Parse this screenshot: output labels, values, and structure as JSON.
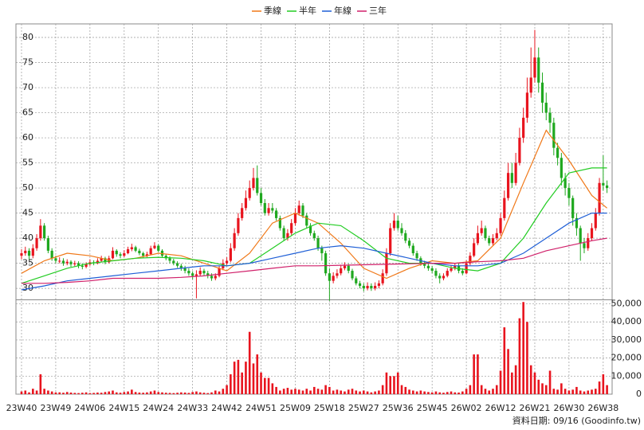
{
  "chart_data": {
    "type": "candlestick",
    "categories": [
      "23W40",
      null,
      null,
      null,
      null,
      null,
      null,
      null,
      null,
      "23W49",
      null,
      null,
      null,
      null,
      null,
      null,
      null,
      null,
      "24W06",
      null,
      null,
      null,
      null,
      null,
      null,
      null,
      null,
      "24W15",
      null,
      null,
      null,
      null,
      null,
      null,
      null,
      null,
      "24W24",
      null,
      null,
      null,
      null,
      null,
      null,
      null,
      null,
      "24W33",
      null,
      null,
      null,
      null,
      null,
      null,
      null,
      null,
      "24W42",
      null,
      null,
      null,
      null,
      null,
      null,
      null,
      null,
      "24W51",
      null,
      null,
      null,
      null,
      null,
      null,
      null,
      null,
      "25W09",
      null,
      null,
      null,
      null,
      null,
      null,
      null,
      null,
      "25W18",
      null,
      null,
      null,
      null,
      null,
      null,
      null,
      null,
      "25W27",
      null,
      null,
      null,
      null,
      null,
      null,
      null,
      null,
      "25W36",
      null,
      null,
      null,
      null,
      null,
      null,
      null,
      null,
      "25W45",
      null,
      null,
      null,
      null,
      null,
      null,
      null,
      null,
      "26W02",
      null,
      null,
      null,
      null,
      null,
      null,
      null,
      null,
      "26W12",
      null,
      null,
      null,
      null,
      null,
      null,
      null,
      null,
      "26W21",
      null,
      null,
      null,
      null,
      null,
      null,
      null,
      null,
      "26W30",
      null,
      null,
      null,
      null,
      null,
      null,
      null,
      null,
      "26W38"
    ],
    "ohlc": [
      [
        36.5,
        37.8,
        35.8,
        37
      ],
      [
        37,
        38.3,
        36.5,
        37.5
      ],
      [
        37.5,
        38,
        35.8,
        36.5
      ],
      [
        36.5,
        38.8,
        36,
        38
      ],
      [
        38,
        40.8,
        37.5,
        40
      ],
      [
        40,
        43.8,
        39.5,
        42.5
      ],
      [
        42.5,
        43,
        39.5,
        40
      ],
      [
        40,
        40.5,
        37,
        37.5
      ],
      [
        37.5,
        38,
        35.5,
        36
      ],
      [
        36,
        36.5,
        35,
        35.5
      ],
      [
        35.5,
        36.2,
        35,
        35.5
      ],
      [
        35.5,
        36,
        34.5,
        35
      ],
      [
        35,
        35.8,
        34.6,
        35.3
      ],
      [
        35.3,
        35.6,
        34.3,
        34.8
      ],
      [
        34.8,
        35.5,
        34.4,
        35
      ],
      [
        35,
        35.4,
        34,
        34.5
      ],
      [
        34.5,
        35,
        33.8,
        34.3
      ],
      [
        34.3,
        35.2,
        34,
        34.8
      ],
      [
        34.8,
        35.8,
        34.5,
        35.2
      ],
      [
        35.2,
        35.6,
        34.6,
        35
      ],
      [
        35,
        36,
        34.8,
        35.5
      ],
      [
        35.5,
        36.5,
        35.2,
        36
      ],
      [
        36,
        36.3,
        34.8,
        35.2
      ],
      [
        35.2,
        36.5,
        35,
        36
      ],
      [
        36,
        38.2,
        35.8,
        37.5
      ],
      [
        37.5,
        37.8,
        36.3,
        36.8
      ],
      [
        36.8,
        37.2,
        36,
        36.5
      ],
      [
        36.5,
        37.6,
        36.2,
        37
      ],
      [
        37,
        38.3,
        36.8,
        37.8
      ],
      [
        37.8,
        38.9,
        37.4,
        38.2
      ],
      [
        38.2,
        38.5,
        37.2,
        37.5
      ],
      [
        37.5,
        37.9,
        36.6,
        37
      ],
      [
        37,
        37.3,
        36,
        36.5
      ],
      [
        36.5,
        37.3,
        36.2,
        36.8
      ],
      [
        36.8,
        38.5,
        36.6,
        38
      ],
      [
        38,
        39.2,
        37.8,
        38.5
      ],
      [
        38.5,
        38.8,
        37.2,
        37.5
      ],
      [
        37.5,
        37.8,
        36.2,
        36.5
      ],
      [
        36.5,
        36.9,
        35.6,
        36
      ],
      [
        36,
        36.4,
        35,
        35.5
      ],
      [
        35.5,
        35.9,
        34.6,
        35
      ],
      [
        35,
        35.4,
        34.1,
        34.5
      ],
      [
        34.5,
        34.9,
        33.5,
        34
      ],
      [
        34,
        34.5,
        33,
        33.5
      ],
      [
        33.5,
        34,
        32.5,
        33
      ],
      [
        33,
        33.4,
        31.8,
        32.5
      ],
      [
        32.5,
        33.6,
        28,
        32.8
      ],
      [
        32.8,
        34.2,
        32.4,
        33.5
      ],
      [
        33.5,
        33.9,
        32.6,
        33
      ],
      [
        33,
        33.5,
        32,
        32.5
      ],
      [
        32.5,
        33,
        31.5,
        32
      ],
      [
        32,
        33,
        31.6,
        32.5
      ],
      [
        32.5,
        34.5,
        32.2,
        34
      ],
      [
        34,
        35.8,
        33.6,
        35
      ],
      [
        35,
        36.2,
        34.6,
        35.5
      ],
      [
        35.5,
        39,
        35.2,
        38
      ],
      [
        38,
        42,
        37.5,
        41
      ],
      [
        41,
        45,
        40.5,
        44
      ],
      [
        44,
        47,
        43.5,
        46
      ],
      [
        46,
        49.5,
        45.5,
        48
      ],
      [
        48,
        51.5,
        47.5,
        50
      ],
      [
        50,
        54,
        49.5,
        52
      ],
      [
        52,
        54.5,
        48.5,
        49
      ],
      [
        49,
        50,
        46.5,
        47
      ],
      [
        47,
        47.8,
        44.5,
        45
      ],
      [
        45,
        47,
        44.5,
        46
      ],
      [
        46,
        47,
        45,
        45.5
      ],
      [
        45.5,
        46,
        43.5,
        44
      ],
      [
        44,
        44.5,
        41.5,
        42
      ],
      [
        42,
        42.5,
        39.5,
        40
      ],
      [
        40,
        41.8,
        39.5,
        41
      ],
      [
        41,
        43.8,
        40.6,
        43
      ],
      [
        43,
        46,
        42.5,
        45
      ],
      [
        45,
        47.5,
        44.5,
        46.5
      ],
      [
        46.5,
        47,
        44,
        44.5
      ],
      [
        44.5,
        45,
        42,
        42.5
      ],
      [
        42.5,
        43,
        40.5,
        41
      ],
      [
        41,
        41.5,
        39.5,
        40
      ],
      [
        40,
        40.5,
        37.5,
        38
      ],
      [
        38,
        38.5,
        35.5,
        37
      ],
      [
        37,
        37.5,
        32.5,
        33
      ],
      [
        33,
        34,
        27.5,
        31.5
      ],
      [
        31.5,
        33.2,
        31,
        32.5
      ],
      [
        32.5,
        33.8,
        32,
        33
      ],
      [
        33,
        34.6,
        32.6,
        34
      ],
      [
        34,
        35.2,
        33.6,
        34.5
      ],
      [
        34.5,
        34.9,
        33,
        33.5
      ],
      [
        33.5,
        33.9,
        31.6,
        32
      ],
      [
        32,
        32.4,
        30.6,
        31
      ],
      [
        31,
        31.5,
        30,
        30.5
      ],
      [
        30.5,
        31,
        29.4,
        30
      ],
      [
        30,
        31.2,
        29.6,
        30.5
      ],
      [
        30.5,
        31,
        29.5,
        30
      ],
      [
        30,
        31.2,
        29.6,
        30.5
      ],
      [
        30.5,
        31.6,
        30,
        31
      ],
      [
        31,
        33.8,
        30.6,
        33
      ],
      [
        33,
        38,
        32.5,
        37
      ],
      [
        37,
        43,
        36.5,
        42
      ],
      [
        42,
        45,
        41.5,
        43.5
      ],
      [
        43.5,
        44.5,
        41.5,
        42
      ],
      [
        42,
        43,
        40.5,
        41
      ],
      [
        41,
        41.6,
        39,
        39.5
      ],
      [
        39.5,
        40,
        38,
        38.5
      ],
      [
        38.5,
        39,
        36.5,
        37
      ],
      [
        37,
        37.5,
        35.5,
        36
      ],
      [
        36,
        36.4,
        34.5,
        35
      ],
      [
        35,
        35.5,
        34,
        34.5
      ],
      [
        34.5,
        35,
        33.5,
        34
      ],
      [
        34,
        34.5,
        33,
        33.5
      ],
      [
        33.5,
        34,
        32,
        32.5
      ],
      [
        32.5,
        33,
        31,
        32
      ],
      [
        32,
        33,
        31.6,
        32.5
      ],
      [
        32.5,
        34,
        32.2,
        33.5
      ],
      [
        33.5,
        34.6,
        33.2,
        34
      ],
      [
        34,
        35,
        33.6,
        34.5
      ],
      [
        34.5,
        35,
        33,
        33.5
      ],
      [
        33.5,
        34,
        32.6,
        33
      ],
      [
        33,
        35.6,
        32.8,
        35
      ],
      [
        35,
        37.2,
        34.6,
        36.5
      ],
      [
        36.5,
        40,
        36.2,
        39
      ],
      [
        39,
        42.5,
        38.6,
        41
      ],
      [
        41,
        43.5,
        40.5,
        42
      ],
      [
        42,
        42.5,
        39.5,
        40
      ],
      [
        40,
        40.5,
        38.5,
        39
      ],
      [
        39,
        40.8,
        38.6,
        40
      ],
      [
        40,
        42,
        39.6,
        41
      ],
      [
        41,
        45,
        40.5,
        44
      ],
      [
        44,
        49.5,
        43.5,
        48
      ],
      [
        48,
        55,
        47.5,
        53
      ],
      [
        53,
        55,
        50,
        51
      ],
      [
        51,
        57,
        50.5,
        55
      ],
      [
        55,
        62,
        54.5,
        60
      ],
      [
        60,
        66,
        59,
        64
      ],
      [
        64,
        72,
        63,
        69
      ],
      [
        69,
        78,
        68,
        72
      ],
      [
        72,
        81.5,
        71,
        76
      ],
      [
        76,
        78,
        69,
        71
      ],
      [
        71,
        73,
        65,
        67
      ],
      [
        67,
        69,
        63.5,
        65
      ],
      [
        65,
        66,
        61,
        63
      ],
      [
        63,
        64,
        56.5,
        58
      ],
      [
        58,
        59,
        54.5,
        56
      ],
      [
        56,
        57,
        50.5,
        52
      ],
      [
        52,
        53,
        48.5,
        50
      ],
      [
        50,
        51,
        46.5,
        48
      ],
      [
        48,
        48.5,
        42.5,
        44
      ],
      [
        44,
        45,
        40.5,
        42
      ],
      [
        42,
        42.5,
        35.5,
        39
      ],
      [
        39,
        40,
        37,
        38
      ],
      [
        38,
        41,
        37.5,
        40
      ],
      [
        40,
        43,
        39.5,
        42
      ],
      [
        42,
        46,
        41.5,
        45
      ],
      [
        45,
        52,
        44.5,
        51
      ],
      [
        51,
        56.5,
        49.5,
        50.5
      ],
      [
        50.5,
        51.5,
        49,
        50
      ]
    ],
    "up_color": "#e8141e",
    "down_color": "#1fa81f",
    "ylim": [
      27.8,
      82.7
    ],
    "yticks": [
      30,
      35,
      40,
      45,
      50,
      55,
      60,
      65,
      70,
      75,
      80
    ],
    "grid": true,
    "series": [
      {
        "name": "季線",
        "color": "#f07818",
        "x": [
          0,
          6,
          12,
          18,
          24,
          30,
          36,
          42,
          48,
          54,
          60,
          66,
          72,
          78,
          84,
          90,
          96,
          102,
          108,
          114,
          120,
          126,
          132,
          138,
          144,
          150,
          154
        ],
        "values": [
          33,
          35.5,
          37,
          36.5,
          35.5,
          36,
          37,
          36.5,
          35,
          33.5,
          37,
          43,
          45,
          43,
          39,
          34,
          32,
          34,
          35.5,
          35,
          35.5,
          40,
          51,
          61.5,
          55.5,
          48.5,
          46
        ]
      },
      {
        "name": "半年",
        "color": "#22cc22",
        "x": [
          0,
          6,
          12,
          18,
          24,
          30,
          36,
          42,
          48,
          54,
          60,
          66,
          72,
          78,
          84,
          90,
          96,
          102,
          108,
          114,
          120,
          126,
          132,
          138,
          144,
          150,
          154
        ],
        "values": [
          31,
          32.5,
          34,
          35,
          35.5,
          36,
          36.2,
          36,
          35.5,
          34.5,
          35,
          38,
          41,
          43,
          42.5,
          39.5,
          36,
          35,
          35,
          34,
          33.5,
          35,
          40,
          47,
          53,
          54,
          54
        ]
      },
      {
        "name": "年線",
        "color": "#1f5fd6",
        "x": [
          0,
          6,
          12,
          18,
          24,
          30,
          36,
          42,
          48,
          54,
          60,
          66,
          72,
          78,
          84,
          90,
          96,
          102,
          108,
          114,
          120,
          126,
          132,
          138,
          144,
          150,
          154
        ],
        "values": [
          29.7,
          30.5,
          31.5,
          32,
          32.5,
          33,
          33.5,
          34,
          34.5,
          34.5,
          35,
          36,
          37,
          38,
          38.5,
          38,
          37,
          36,
          35,
          34.5,
          34.5,
          35,
          37,
          40,
          43,
          45,
          45
        ]
      },
      {
        "name": "三年",
        "color": "#d0206a",
        "x": [
          0,
          6,
          12,
          18,
          24,
          30,
          36,
          42,
          48,
          54,
          60,
          66,
          72,
          78,
          84,
          90,
          96,
          102,
          108,
          114,
          120,
          126,
          132,
          138,
          144,
          150,
          154
        ],
        "values": [
          31,
          31,
          31.2,
          31.5,
          32,
          32,
          32,
          32.2,
          32.5,
          33,
          33.5,
          34,
          34.5,
          34.5,
          34.6,
          34.7,
          34.8,
          34.9,
          35,
          35,
          35.3,
          35.5,
          36,
          37.5,
          38.5,
          39.5,
          40
        ]
      }
    ],
    "volume": {
      "color": "#e8141e",
      "ylim": [
        0,
        52000
      ],
      "yticks": [
        0,
        {
          "value": 10000,
          "label": "10,000"
        },
        {
          "value": 20000,
          "label": "20,000"
        },
        {
          "value": 30000,
          "label": "30,000"
        },
        {
          "value": 40000,
          "label": "40,000"
        },
        {
          "value": 50000,
          "label": "50,000"
        }
      ],
      "values": [
        1500,
        2000,
        1000,
        3000,
        2000,
        11000,
        3000,
        2000,
        1500,
        1000,
        1000,
        800,
        1200,
        900,
        700,
        600,
        800,
        1000,
        600,
        700,
        900,
        800,
        1200,
        1500,
        2000,
        1000,
        800,
        1200,
        1500,
        2500,
        1200,
        900,
        800,
        1000,
        1500,
        2000,
        1200,
        1000,
        800,
        700,
        600,
        800,
        1000,
        900,
        700,
        1200,
        1500,
        1000,
        800,
        600,
        1000,
        2000,
        1500,
        3000,
        5000,
        11000,
        18000,
        19000,
        12000,
        18000,
        34500,
        17000,
        22000,
        12000,
        9000,
        9000,
        6000,
        4000,
        2000,
        3000,
        3500,
        2500,
        3000,
        2500,
        2000,
        3000,
        2000,
        4000,
        3000,
        2500,
        5000,
        4000,
        2000,
        2500,
        2000,
        1500,
        2500,
        3000,
        2000,
        1500,
        2000,
        1500,
        1000,
        1500,
        2000,
        5000,
        12000,
        10000,
        10000,
        12000,
        5000,
        4000,
        2500,
        2000,
        1500,
        2000,
        1500,
        1200,
        1000,
        1500,
        1000,
        800,
        1200,
        1500,
        1000,
        900,
        1500,
        3000,
        5000,
        22000,
        22000,
        5000,
        3000,
        2000,
        3000,
        5000,
        13000,
        37000,
        25000,
        12000,
        16000,
        42000,
        51000,
        40000,
        16000,
        12000,
        8000,
        6000,
        5000,
        13000,
        3000,
        2500,
        6000,
        3000,
        2000,
        2500,
        4000,
        2000,
        1500,
        2000,
        2500,
        3000,
        7000,
        11000,
        5000
      ]
    },
    "source": "資料日期: 09/16  (Goodinfo.tw)"
  }
}
